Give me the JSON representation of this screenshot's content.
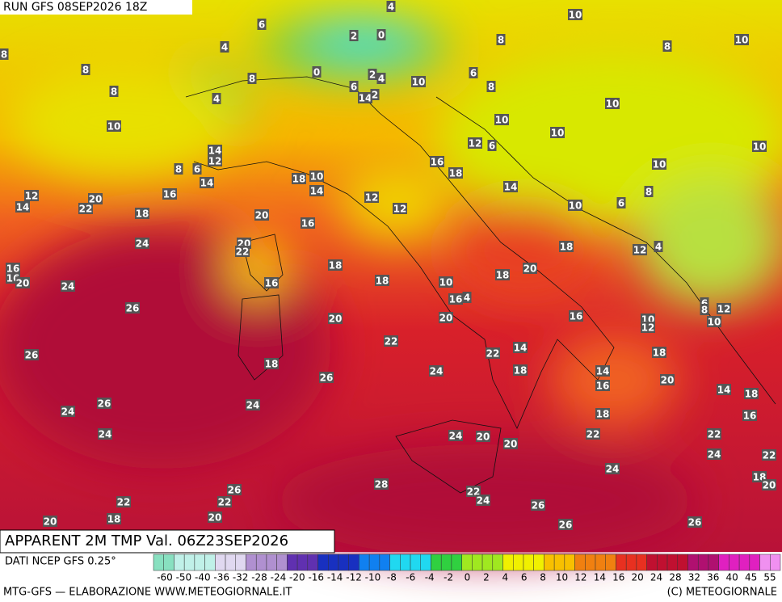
{
  "header": {
    "run": "RUN GFS 08SEP2026 18Z"
  },
  "legend": {
    "title": "APPARENT 2M TMP Val. 06Z23SEP2026",
    "source": "DATI NCEP GFS 0.25°",
    "scale": [
      "-60",
      "-50",
      "-40",
      "-36",
      "-32",
      "-28",
      "-24",
      "-20",
      "-16",
      "-14",
      "-12",
      "-10",
      "-8",
      "-6",
      "-4",
      "-2",
      "0",
      "2",
      "4",
      "6",
      "8",
      "10",
      "12",
      "14",
      "16",
      "20",
      "24",
      "28",
      "32",
      "36",
      "40",
      "45",
      "55"
    ]
  },
  "footer": {
    "left": "MTG-GFS — ELABORAZIONE WWW.METEOGIORNALE.IT",
    "right": "(C) METEOGIORNALE"
  },
  "map": {
    "labels": [
      4,
      10,
      6,
      2,
      0,
      8,
      10,
      8,
      4,
      8,
      8,
      0,
      2,
      4,
      6,
      10,
      8,
      8,
      6,
      8,
      14,
      2,
      4,
      10,
      10,
      10,
      10,
      12,
      6,
      14,
      12,
      10,
      8,
      6,
      16,
      10,
      18,
      18,
      10,
      14,
      14,
      8,
      12,
      14,
      12,
      20,
      16,
      14,
      22,
      10,
      6,
      12,
      18,
      20,
      16,
      20,
      22,
      24,
      18,
      12,
      4,
      16,
      16,
      20,
      20,
      18,
      18,
      18,
      16,
      24,
      10,
      16,
      4,
      26,
      6,
      8,
      12,
      16,
      20,
      20,
      10,
      10,
      12,
      22,
      14,
      26,
      22,
      18,
      18,
      18,
      24,
      14,
      26,
      20,
      16,
      14,
      18,
      24,
      26,
      24,
      18,
      16,
      24,
      24,
      20,
      22,
      22,
      20,
      24,
      22,
      24,
      18,
      20,
      28,
      26,
      22,
      22,
      24,
      26,
      22,
      20,
      18,
      20,
      26,
      26
    ]
  }
}
